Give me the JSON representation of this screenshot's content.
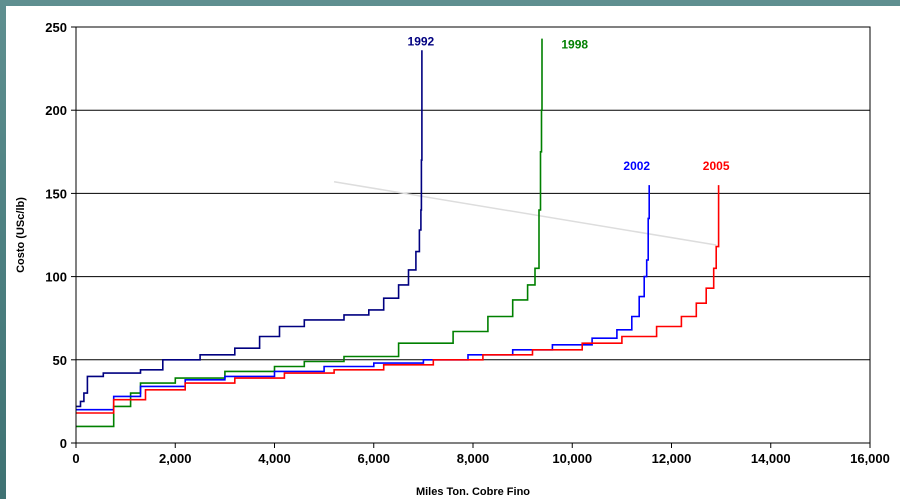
{
  "chart_data": {
    "type": "line",
    "title": "",
    "xlabel": "Miles Ton. Cobre Fino",
    "ylabel": "Costo (USc/lb)",
    "xlim": [
      0,
      16000
    ],
    "ylim": [
      0,
      250
    ],
    "x_ticks": [
      0,
      2000,
      4000,
      6000,
      8000,
      10000,
      12000,
      14000,
      16000
    ],
    "x_tick_labels": [
      "0",
      "2,000",
      "4,000",
      "6,000",
      "8,000",
      "10,000",
      "12,000",
      "14,000",
      "16,000"
    ],
    "y_ticks": [
      0,
      50,
      100,
      150,
      200,
      250
    ],
    "y_tick_labels": [
      "0",
      "50",
      "100",
      "150",
      "200",
      "250"
    ],
    "horizontal_grid": true,
    "series": [
      {
        "name": "1992",
        "color": "#000080",
        "points": [
          [
            0,
            22
          ],
          [
            90,
            25
          ],
          [
            160,
            30
          ],
          [
            230,
            40
          ],
          [
            550,
            42
          ],
          [
            1300,
            44
          ],
          [
            1750,
            50
          ],
          [
            2500,
            53
          ],
          [
            3200,
            57
          ],
          [
            3700,
            64
          ],
          [
            4100,
            70
          ],
          [
            4600,
            74
          ],
          [
            5400,
            77
          ],
          [
            5900,
            80
          ],
          [
            6200,
            87
          ],
          [
            6500,
            95
          ],
          [
            6700,
            104
          ],
          [
            6850,
            115
          ],
          [
            6920,
            128
          ],
          [
            6950,
            140
          ],
          [
            6960,
            170
          ],
          [
            6970,
            236
          ]
        ]
      },
      {
        "name": "1998",
        "color": "#008000",
        "points": [
          [
            0,
            10
          ],
          [
            750,
            10
          ],
          [
            760,
            22
          ],
          [
            1100,
            30
          ],
          [
            1300,
            36
          ],
          [
            2000,
            39
          ],
          [
            3000,
            43
          ],
          [
            4000,
            46
          ],
          [
            4600,
            49
          ],
          [
            5400,
            52
          ],
          [
            6500,
            60
          ],
          [
            7600,
            67
          ],
          [
            8300,
            76
          ],
          [
            8800,
            86
          ],
          [
            9100,
            95
          ],
          [
            9250,
            105
          ],
          [
            9330,
            140
          ],
          [
            9360,
            175
          ],
          [
            9380,
            200
          ],
          [
            9390,
            243
          ]
        ]
      },
      {
        "name": "2002",
        "color": "#0000ff",
        "points": [
          [
            0,
            20
          ],
          [
            750,
            20
          ],
          [
            760,
            28
          ],
          [
            1300,
            34
          ],
          [
            2200,
            38
          ],
          [
            3000,
            40
          ],
          [
            4000,
            43
          ],
          [
            5000,
            46
          ],
          [
            6000,
            48
          ],
          [
            7000,
            50
          ],
          [
            7900,
            53
          ],
          [
            8800,
            56
          ],
          [
            9600,
            59
          ],
          [
            10400,
            63
          ],
          [
            10900,
            68
          ],
          [
            11200,
            76
          ],
          [
            11350,
            88
          ],
          [
            11450,
            100
          ],
          [
            11500,
            110
          ],
          [
            11530,
            135
          ],
          [
            11550,
            155
          ]
        ]
      },
      {
        "name": "2005",
        "color": "#ff0000",
        "points": [
          [
            0,
            18
          ],
          [
            750,
            18
          ],
          [
            760,
            26
          ],
          [
            1400,
            32
          ],
          [
            2200,
            36
          ],
          [
            3200,
            39
          ],
          [
            4200,
            42
          ],
          [
            5200,
            44
          ],
          [
            6200,
            47
          ],
          [
            7200,
            50
          ],
          [
            8200,
            53
          ],
          [
            9200,
            56
          ],
          [
            10200,
            60
          ],
          [
            11000,
            64
          ],
          [
            11700,
            70
          ],
          [
            12200,
            76
          ],
          [
            12500,
            84
          ],
          [
            12700,
            93
          ],
          [
            12850,
            105
          ],
          [
            12900,
            118
          ],
          [
            12950,
            155
          ]
        ]
      }
    ],
    "annotation_line": {
      "color": "#dddddd",
      "from": [
        5200,
        157
      ],
      "to": [
        12900,
        119
      ]
    },
    "series_labels": [
      {
        "name": "1992",
        "x": 6950,
        "y": 239,
        "color": "#000080"
      },
      {
        "name": "1998",
        "x": 10050,
        "y": 237,
        "color": "#008000"
      },
      {
        "name": "2002",
        "x": 11300,
        "y": 164,
        "color": "#0000ff"
      },
      {
        "name": "2005",
        "x": 12900,
        "y": 164,
        "color": "#ff0000"
      }
    ]
  }
}
